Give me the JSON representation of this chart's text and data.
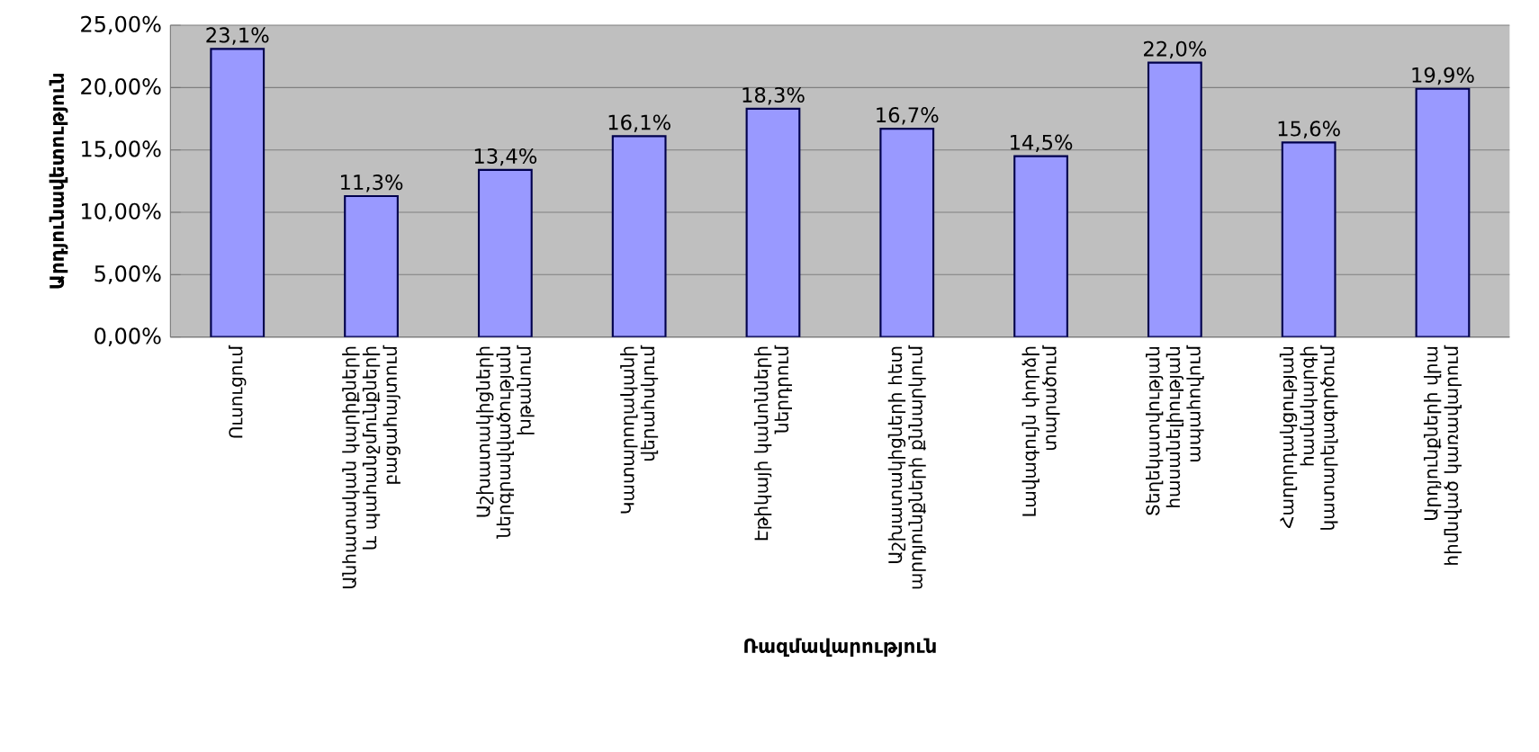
{
  "chart_data": {
    "type": "bar",
    "xlabel": "Ռազմավարություն",
    "ylabel": "Արդյունավետություն",
    "categories": [
      "Ուսուցում",
      "Անհատական կարիքների և պահանջմունքների բացահայտում",
      "Աշխատակիցների ներգրավվածության խթանում",
      "Կատարողականի վերահսկում",
      "Էթիկայի կանոնների ներդրում",
      "Աշխատակիցների հետ արդյունքների քննարկում",
      "Լավագույն փորձի տարածում",
      "Տեղեկատվության հասանելիության ապահովում",
      "Հաղորդակցության համակարգի կատարելագործում",
      "Արդյունքների վրա հիմնված կառավարում"
    ],
    "values": [
      23.1,
      11.3,
      13.4,
      16.1,
      18.3,
      16.7,
      14.5,
      22.0,
      15.6,
      19.9
    ],
    "value_labels": [
      "23,1%",
      "11,3%",
      "13,4%",
      "16,1%",
      "18,3%",
      "16,7%",
      "14,5%",
      "22,0%",
      "15,6%",
      "19,9%"
    ],
    "color": "#9999ff",
    "ylim": [
      0,
      25
    ],
    "yticks": [
      {
        "value": 0,
        "label": "0,00%"
      },
      {
        "value": 5,
        "label": "5,00%"
      },
      {
        "value": 10,
        "label": "10,00%"
      },
      {
        "value": 15,
        "label": "15,00%"
      },
      {
        "value": 20,
        "label": "20,00%"
      },
      {
        "value": 25,
        "label": "25,00%"
      }
    ],
    "grid": "y"
  }
}
